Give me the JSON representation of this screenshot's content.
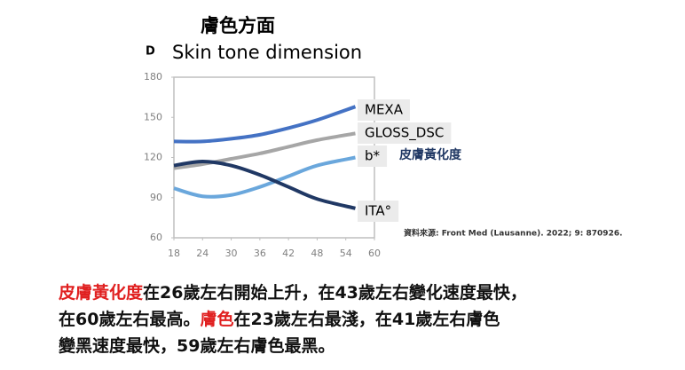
{
  "chart_data": {
    "type": "line",
    "title": "膚色方面",
    "panel_label": "D",
    "subtitle": "Skin tone dimension",
    "x": [
      18,
      24,
      30,
      36,
      42,
      48,
      56
    ],
    "xlim": [
      18,
      60
    ],
    "xticks": [
      18,
      24,
      30,
      36,
      42,
      48,
      54,
      60
    ],
    "ylim": [
      60,
      180
    ],
    "yticks": [
      60,
      90,
      120,
      150,
      180
    ],
    "series": [
      {
        "name": "MEXA",
        "color": "#4472c4",
        "values": [
          132,
          132,
          134,
          137,
          142,
          148,
          158
        ]
      },
      {
        "name": "GLOSS_DSC",
        "color": "#a6a6a6",
        "values": [
          112,
          115,
          119,
          123,
          128,
          133,
          138
        ]
      },
      {
        "name": "b*",
        "color": "#6aa7dc",
        "values": [
          97,
          91,
          92,
          98,
          106,
          114,
          120
        ]
      },
      {
        "name": "ITA°",
        "color": "#203864",
        "values": [
          114,
          117,
          114,
          107,
          98,
          89,
          82
        ]
      }
    ],
    "annotation": "皮膚黃化度",
    "source": "資料來源: Front Med (Lausanne). 2022; 9: 870926."
  },
  "paragraph": {
    "highlight_color": "#e02020",
    "lines": [
      [
        {
          "text": "皮膚黃化度",
          "highlight": true
        },
        {
          "text": "在26歲左右開始上升，在43歲左右變化速度最快，",
          "highlight": false
        }
      ],
      [
        {
          "text": "在60歲左右最高。",
          "highlight": false
        },
        {
          "text": "膚色",
          "highlight": true
        },
        {
          "text": "在23歲左右最淺，在41歲左右膚色",
          "highlight": false
        }
      ],
      [
        {
          "text": "變黑速度最快，59歲左右膚色最黑。",
          "highlight": false
        }
      ]
    ]
  }
}
